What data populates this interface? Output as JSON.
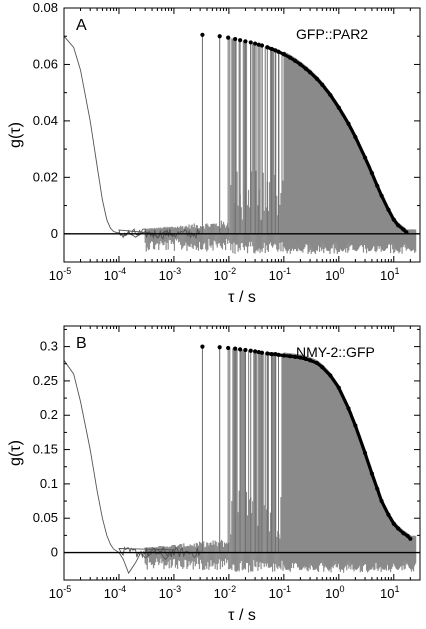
{
  "chart_data": [
    {
      "type": "line",
      "panel_label": "A",
      "annotation": "GFP::PAR2",
      "xlabel": "τ / s",
      "ylabel": "g(τ)",
      "xscale": "log",
      "xlim": [
        1e-05,
        30
      ],
      "ylim": [
        -0.01,
        0.08
      ],
      "yticks": [
        "-0.00",
        "0",
        "0.02",
        "0.04",
        "0.06",
        "0.08"
      ],
      "ytick_values": [
        0,
        0.02,
        0.04,
        0.06,
        0.08
      ],
      "ytick_labels": [
        "0",
        "0.02",
        "0.04",
        "0.06",
        "0.08"
      ],
      "xtick_exponents": [
        "-5",
        "-4",
        "-3",
        "-2",
        "-1",
        "0",
        "1"
      ],
      "xtick_base": "10",
      "zero_line": true,
      "series": [
        {
          "role": "noisy-trace",
          "x": [
            1e-05,
            1.5e-05,
            2e-05,
            3e-05,
            4e-05,
            5e-05,
            6e-05,
            7e-05,
            8e-05,
            9e-05,
            0.0001,
            0.00012,
            0.00015,
            0.0002,
            0.0003,
            0.0005,
            0.0007,
            0.001
          ],
          "values": [
            0.07,
            0.066,
            0.058,
            0.04,
            0.024,
            0.012,
            0.005,
            0.002,
            0.0008,
            0.0005,
            0.0003,
            -0.001,
            0.0005,
            -0.0012,
            0.0008,
            -0.001,
            0.001,
            -0.0005
          ]
        },
        {
          "role": "fit-points",
          "x": [
            0.0033,
            0.0068,
            0.0097,
            0.013,
            0.016,
            0.02,
            0.025,
            0.03,
            0.035,
            0.04,
            0.05,
            0.06,
            0.07,
            0.08,
            0.1,
            0.13,
            0.16,
            0.2,
            0.25,
            0.3,
            0.4,
            0.5,
            0.7,
            1,
            1.5,
            2,
            3,
            4,
            5,
            6,
            8,
            10,
            12,
            15,
            17
          ],
          "values": [
            0.0705,
            0.07,
            0.0695,
            0.069,
            0.0686,
            0.0682,
            0.0678,
            0.0674,
            0.067,
            0.0667,
            0.0661,
            0.0655,
            0.065,
            0.0645,
            0.0636,
            0.0624,
            0.0613,
            0.06,
            0.0585,
            0.0572,
            0.0549,
            0.0528,
            0.0492,
            0.0447,
            0.039,
            0.0343,
            0.027,
            0.0215,
            0.017,
            0.0135,
            0.0085,
            0.005,
            0.003,
            0.0015,
            0.0005
          ]
        }
      ]
    },
    {
      "type": "line",
      "panel_label": "B",
      "annotation": "NMY-2::GFP",
      "xlabel": "τ / s",
      "ylabel": "g(τ)",
      "xscale": "log",
      "xlim": [
        1e-05,
        30
      ],
      "ylim": [
        -0.04,
        0.33
      ],
      "ytick_values": [
        0,
        0.05,
        0.1,
        0.15,
        0.2,
        0.25,
        0.3
      ],
      "ytick_labels": [
        "0",
        "0.05",
        "0.1",
        "0.15",
        "0.2",
        "0.25",
        "0.3"
      ],
      "xtick_exponents": [
        "-5",
        "-4",
        "-3",
        "-2",
        "-1",
        "0",
        "1"
      ],
      "xtick_base": "10",
      "zero_line": true,
      "series": [
        {
          "role": "noisy-trace",
          "x": [
            1e-05,
            1.5e-05,
            2e-05,
            3e-05,
            4e-05,
            5e-05,
            6e-05,
            7e-05,
            8e-05,
            0.0001,
            0.00012,
            0.00015,
            0.0002,
            0.00025,
            0.0003,
            0.0005,
            0.0007,
            0.001
          ],
          "values": [
            0.28,
            0.26,
            0.22,
            0.15,
            0.09,
            0.05,
            0.025,
            0.012,
            0.005,
            0.0,
            -0.01,
            -0.03,
            -0.015,
            0.0,
            -0.008,
            0.005,
            -0.01,
            0.004
          ]
        },
        {
          "role": "fit-points",
          "x": [
            0.0033,
            0.0068,
            0.0097,
            0.013,
            0.016,
            0.02,
            0.025,
            0.03,
            0.035,
            0.04,
            0.05,
            0.06,
            0.07,
            0.08,
            0.1,
            0.13,
            0.16,
            0.2,
            0.25,
            0.3,
            0.4,
            0.5,
            0.7,
            1,
            1.5,
            2,
            3,
            4,
            5,
            6,
            8,
            10,
            12,
            15,
            18,
            20
          ],
          "values": [
            0.3,
            0.299,
            0.298,
            0.297,
            0.296,
            0.295,
            0.294,
            0.293,
            0.292,
            0.291,
            0.29,
            0.289,
            0.289,
            0.288,
            0.287,
            0.286,
            0.285,
            0.284,
            0.282,
            0.28,
            0.276,
            0.27,
            0.258,
            0.24,
            0.21,
            0.185,
            0.145,
            0.115,
            0.093,
            0.075,
            0.055,
            0.042,
            0.035,
            0.028,
            0.024,
            0.02
          ]
        }
      ]
    }
  ]
}
